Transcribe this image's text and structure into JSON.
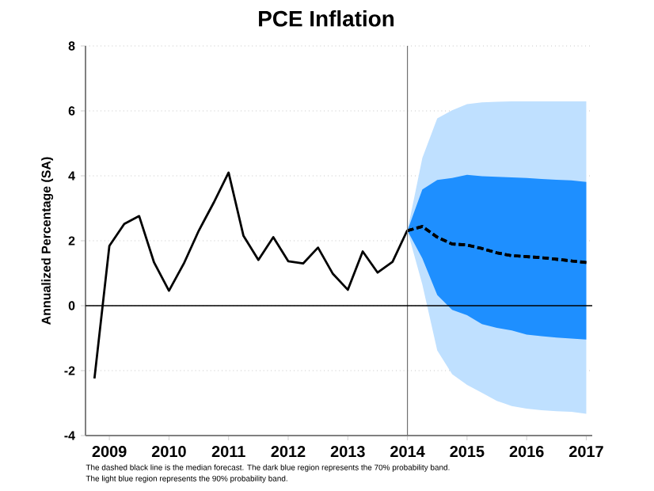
{
  "chart_data": {
    "type": "line",
    "title": "PCE Inflation",
    "ylabel": "Annualized Percentage (SA)",
    "xlim": [
      2008.6,
      2017.1
    ],
    "ylim": [
      -4,
      8
    ],
    "xticks": [
      2009,
      2010,
      2011,
      2012,
      2013,
      2014,
      2015,
      2016,
      2017
    ],
    "yticks": [
      -4,
      -2,
      0,
      2,
      4,
      6,
      8
    ],
    "grid": "y",
    "series": [
      {
        "color": "#000000",
        "line_style": "dashed",
        "x": [
          2014,
          2014.25,
          2014.5,
          2014.75,
          2015,
          2015.25,
          2015.5,
          2015.75,
          2016,
          2016.25,
          2016.5,
          2016.75,
          2017
        ],
        "values": [
          2.31,
          2.44,
          2.11,
          1.9,
          1.87,
          1.76,
          1.63,
          1.54,
          1.51,
          1.48,
          1.43,
          1.38,
          1.33
        ],
        "lower": [
          2.31,
          0.65,
          -1.38,
          -2.11,
          -2.44,
          -2.68,
          -2.93,
          -3.09,
          -3.17,
          -3.22,
          -3.25,
          -3.27,
          -3.33
        ],
        "upper": [
          2.31,
          4.55,
          5.77,
          6.02,
          6.21,
          6.26,
          6.28,
          6.29,
          6.29,
          6.29,
          6.29,
          6.29,
          6.29
        ]
      },
      {
        "color": "#000000",
        "line_style": "dashed",
        "x": [
          2014,
          2014.25,
          2014.5,
          2014.75,
          2015,
          2015.25,
          2015.5,
          2015.75,
          2016,
          2016.25,
          2016.5,
          2016.75,
          2017
        ],
        "values": [
          2.31,
          2.44,
          2.11,
          1.9,
          1.87,
          1.76,
          1.63,
          1.54,
          1.51,
          1.48,
          1.43,
          1.38,
          1.33
        ],
        "lower": [
          2.31,
          1.46,
          0.33,
          -0.13,
          -0.29,
          -0.57,
          -0.68,
          -0.76,
          -0.89,
          -0.94,
          -0.98,
          -1.01,
          -1.04
        ],
        "upper": [
          2.31,
          3.58,
          3.87,
          3.93,
          4.03,
          3.99,
          3.97,
          3.95,
          3.93,
          3.9,
          3.88,
          3.86,
          3.81
        ]
      },
      {
        "color": "#000000",
        "line_style": "solid",
        "x": [
          2008.75,
          2009,
          2009.25,
          2009.5,
          2009.75,
          2010,
          2010.25,
          2010.5,
          2010.75,
          2011,
          2011.25,
          2011.5,
          2011.75,
          2012,
          2012.25,
          2012.5,
          2012.75,
          2013,
          2013.25,
          2013.5,
          2013.75,
          2014
        ],
        "values": [
          -2.24,
          1.84,
          2.52,
          2.76,
          1.33,
          0.46,
          1.3,
          2.31,
          3.17,
          4.1,
          2.15,
          1.41,
          2.11,
          1.37,
          1.3,
          1.79,
          0.98,
          0.49,
          1.67,
          1.02,
          1.35,
          2.33
        ]
      }
    ],
    "ref_lines": [
      {
        "axis": "x",
        "value": 2014,
        "color": "#707070"
      },
      {
        "axis": "y",
        "value": 0,
        "color": "#000000"
      }
    ],
    "annotations": [
      "The dashed black line is the median forecast. The dark blue region represents the 70% probability band.",
      "The light blue region represents the 90% probability band."
    ]
  }
}
